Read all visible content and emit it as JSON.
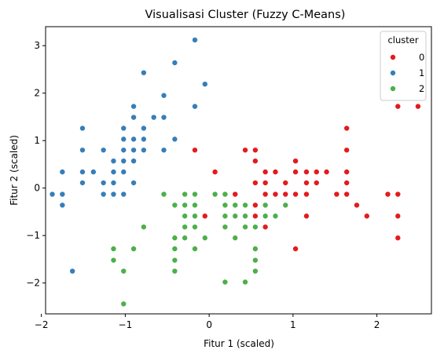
{
  "chart_data": {
    "type": "scatter",
    "title": "Visualisasi Cluster (Fuzzy C-Means)",
    "xlabel": "Fitur 1 (scaled)",
    "ylabel": "Fitur 2 (scaled)",
    "xlim": [
      -1.95,
      2.65
    ],
    "ylim": [
      -2.65,
      3.4
    ],
    "xticks": [
      -2,
      -1,
      0,
      1,
      2
    ],
    "yticks": [
      -2,
      -1,
      0,
      1,
      2,
      3
    ],
    "grid": false,
    "legend": {
      "title": "cluster",
      "placement": "top-right"
    },
    "series": [
      {
        "name": "0",
        "color": "#e41a1c",
        "points": [
          [
            2.25,
            1.72
          ],
          [
            2.49,
            1.72
          ],
          [
            1.64,
            1.26
          ],
          [
            -0.17,
            0.8
          ],
          [
            0.43,
            0.8
          ],
          [
            0.55,
            0.8
          ],
          [
            1.64,
            0.8
          ],
          [
            0.55,
            0.57
          ],
          [
            1.03,
            0.57
          ],
          [
            0.07,
            0.34
          ],
          [
            0.67,
            0.34
          ],
          [
            0.79,
            0.34
          ],
          [
            1.03,
            0.34
          ],
          [
            1.16,
            0.34
          ],
          [
            1.28,
            0.34
          ],
          [
            1.4,
            0.34
          ],
          [
            1.64,
            0.34
          ],
          [
            0.55,
            0.11
          ],
          [
            0.67,
            0.11
          ],
          [
            0.91,
            0.11
          ],
          [
            1.16,
            0.11
          ],
          [
            1.28,
            0.11
          ],
          [
            1.64,
            0.11
          ],
          [
            0.31,
            -0.13
          ],
          [
            0.67,
            -0.13
          ],
          [
            0.79,
            -0.13
          ],
          [
            0.91,
            -0.13
          ],
          [
            1.03,
            -0.13
          ],
          [
            1.16,
            -0.13
          ],
          [
            1.52,
            -0.13
          ],
          [
            1.64,
            -0.13
          ],
          [
            2.13,
            -0.13
          ],
          [
            2.25,
            -0.13
          ],
          [
            1.76,
            -0.36
          ],
          [
            0.55,
            -0.36
          ],
          [
            -0.05,
            -0.59
          ],
          [
            0.55,
            -0.59
          ],
          [
            0.67,
            -0.59
          ],
          [
            1.16,
            -0.59
          ],
          [
            1.88,
            -0.59
          ],
          [
            2.25,
            -0.59
          ],
          [
            0.67,
            -0.82
          ],
          [
            2.25,
            -1.05
          ],
          [
            1.03,
            -1.28
          ]
        ]
      },
      {
        "name": "1",
        "color": "#377eb8",
        "points": [
          [
            -0.17,
            3.12
          ],
          [
            -0.41,
            2.64
          ],
          [
            -0.78,
            2.43
          ],
          [
            -0.05,
            2.19
          ],
          [
            -0.54,
            1.95
          ],
          [
            -0.9,
            1.72
          ],
          [
            -0.17,
            1.72
          ],
          [
            -0.9,
            1.49
          ],
          [
            -0.54,
            1.49
          ],
          [
            -0.66,
            1.49
          ],
          [
            -1.51,
            1.26
          ],
          [
            -1.02,
            1.26
          ],
          [
            -0.78,
            1.26
          ],
          [
            -1.02,
            1.03
          ],
          [
            -0.9,
            1.03
          ],
          [
            -0.78,
            1.03
          ],
          [
            -0.41,
            1.03
          ],
          [
            -1.51,
            0.8
          ],
          [
            -1.26,
            0.8
          ],
          [
            -1.02,
            0.8
          ],
          [
            -0.9,
            0.8
          ],
          [
            -0.78,
            0.8
          ],
          [
            -0.54,
            0.8
          ],
          [
            -1.14,
            0.57
          ],
          [
            -1.02,
            0.57
          ],
          [
            -0.9,
            0.57
          ],
          [
            -1.75,
            0.34
          ],
          [
            -1.51,
            0.34
          ],
          [
            -1.38,
            0.34
          ],
          [
            -1.14,
            0.34
          ],
          [
            -1.02,
            0.34
          ],
          [
            -1.51,
            0.11
          ],
          [
            -1.26,
            0.11
          ],
          [
            -1.14,
            0.11
          ],
          [
            -0.9,
            0.11
          ],
          [
            -1.87,
            -0.13
          ],
          [
            -1.75,
            -0.13
          ],
          [
            -1.26,
            -0.13
          ],
          [
            -1.14,
            -0.13
          ],
          [
            -1.02,
            -0.13
          ],
          [
            -1.75,
            -0.36
          ],
          [
            -1.63,
            -1.75
          ]
        ]
      },
      {
        "name": "2",
        "color": "#4daf4a",
        "points": [
          [
            -0.54,
            -0.13
          ],
          [
            -0.29,
            -0.13
          ],
          [
            -0.17,
            -0.13
          ],
          [
            0.07,
            -0.13
          ],
          [
            0.19,
            -0.13
          ],
          [
            -0.41,
            -0.36
          ],
          [
            -0.29,
            -0.36
          ],
          [
            -0.17,
            -0.36
          ],
          [
            0.19,
            -0.36
          ],
          [
            0.31,
            -0.36
          ],
          [
            0.43,
            -0.36
          ],
          [
            0.67,
            -0.36
          ],
          [
            0.91,
            -0.36
          ],
          [
            -0.29,
            -0.59
          ],
          [
            -0.17,
            -0.59
          ],
          [
            0.19,
            -0.59
          ],
          [
            0.31,
            -0.59
          ],
          [
            0.43,
            -0.59
          ],
          [
            0.67,
            -0.59
          ],
          [
            0.79,
            -0.59
          ],
          [
            -0.78,
            -0.82
          ],
          [
            -0.29,
            -0.82
          ],
          [
            -0.17,
            -0.82
          ],
          [
            0.19,
            -0.82
          ],
          [
            0.43,
            -0.82
          ],
          [
            0.55,
            -0.82
          ],
          [
            -0.41,
            -1.05
          ],
          [
            -0.29,
            -1.05
          ],
          [
            -0.05,
            -1.05
          ],
          [
            0.31,
            -1.05
          ],
          [
            -1.14,
            -1.28
          ],
          [
            -0.9,
            -1.28
          ],
          [
            -0.41,
            -1.28
          ],
          [
            -0.17,
            -1.28
          ],
          [
            0.55,
            -1.28
          ],
          [
            -1.14,
            -1.52
          ],
          [
            -0.41,
            -1.52
          ],
          [
            0.55,
            -1.52
          ],
          [
            -1.02,
            -1.75
          ],
          [
            -0.41,
            -1.75
          ],
          [
            0.55,
            -1.75
          ],
          [
            0.19,
            -1.98
          ],
          [
            0.43,
            -1.98
          ],
          [
            -1.02,
            -2.44
          ]
        ]
      }
    ]
  }
}
